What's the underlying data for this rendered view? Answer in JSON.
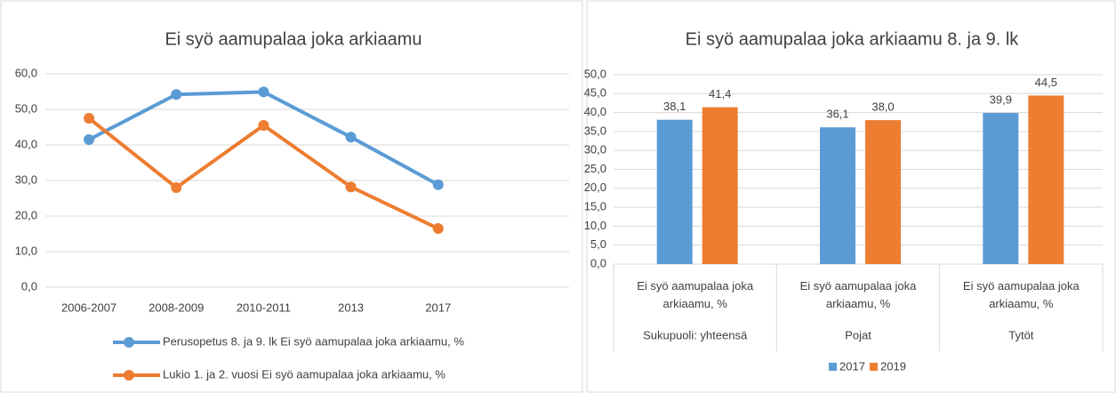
{
  "chart_data": [
    {
      "type": "line",
      "title": "Ei syö aamupalaa joka arkiaamu",
      "categories": [
        "2006-2007",
        "2008-2009",
        "2010-2011",
        "2013",
        "2017",
        null
      ],
      "series": [
        {
          "name": "Perusopetus 8. ja 9. lk Ei syö aamupalaa joka arkiaamu, %",
          "color": "#5b9bd5",
          "values": [
            41.5,
            54.2,
            54.9,
            42.2,
            28.8,
            null
          ]
        },
        {
          "name": "Lukio 1. ja 2. vuosi Ei syö aamupalaa joka arkiaamu, %",
          "color": "#ed7d31",
          "values": [
            47.5,
            28.0,
            45.5,
            28.2,
            16.5,
            null
          ]
        }
      ],
      "ylim": [
        0,
        60
      ],
      "yticks": [
        {
          "value": 0,
          "label": "0,0"
        },
        {
          "value": 10,
          "label": "10,0"
        },
        {
          "value": 20,
          "label": "20,0"
        },
        {
          "value": 30,
          "label": "30,0"
        },
        {
          "value": 40,
          "label": "40,0"
        },
        {
          "value": 50,
          "label": "50,0"
        },
        {
          "value": 60,
          "label": "60,0"
        }
      ],
      "grid": true,
      "legend": "bottom"
    },
    {
      "type": "bar",
      "title": "Ei syö aamupalaa joka arkiaamu 8. ja 9. lk",
      "categories": [
        "Ei syö aamupalaa joka arkiaamu, %",
        "Ei syö aamupalaa joka arkiaamu, %",
        "Ei syö aamupalaa joka arkiaamu, %"
      ],
      "groups": [
        "Sukupuoli: yhteensä",
        "Pojat",
        "Tytöt"
      ],
      "series": [
        {
          "name": "2017",
          "color": "#5b9bd5",
          "values": [
            38.1,
            36.1,
            39.9
          ],
          "value_labels": [
            "38,1",
            "36,1",
            "39,9"
          ]
        },
        {
          "name": "2019",
          "color": "#ed7d31",
          "values": [
            41.4,
            38.0,
            44.5
          ],
          "value_labels": [
            "41,4",
            "38,0",
            "44,5"
          ]
        }
      ],
      "ylim": [
        0,
        50
      ],
      "yticks": [
        {
          "value": 0,
          "label": "0,0"
        },
        {
          "value": 5,
          "label": "5,0"
        },
        {
          "value": 10,
          "label": "10,0"
        },
        {
          "value": 15,
          "label": "15,0"
        },
        {
          "value": 20,
          "label": "20,0"
        },
        {
          "value": 25,
          "label": "25,0"
        },
        {
          "value": 30,
          "label": "30,0"
        },
        {
          "value": 35,
          "label": "35,0"
        },
        {
          "value": 40,
          "label": "40,0"
        },
        {
          "value": 45,
          "label": "45,0"
        },
        {
          "value": 50,
          "label": "50,0"
        }
      ],
      "grid": true,
      "legend": "bottom"
    }
  ]
}
